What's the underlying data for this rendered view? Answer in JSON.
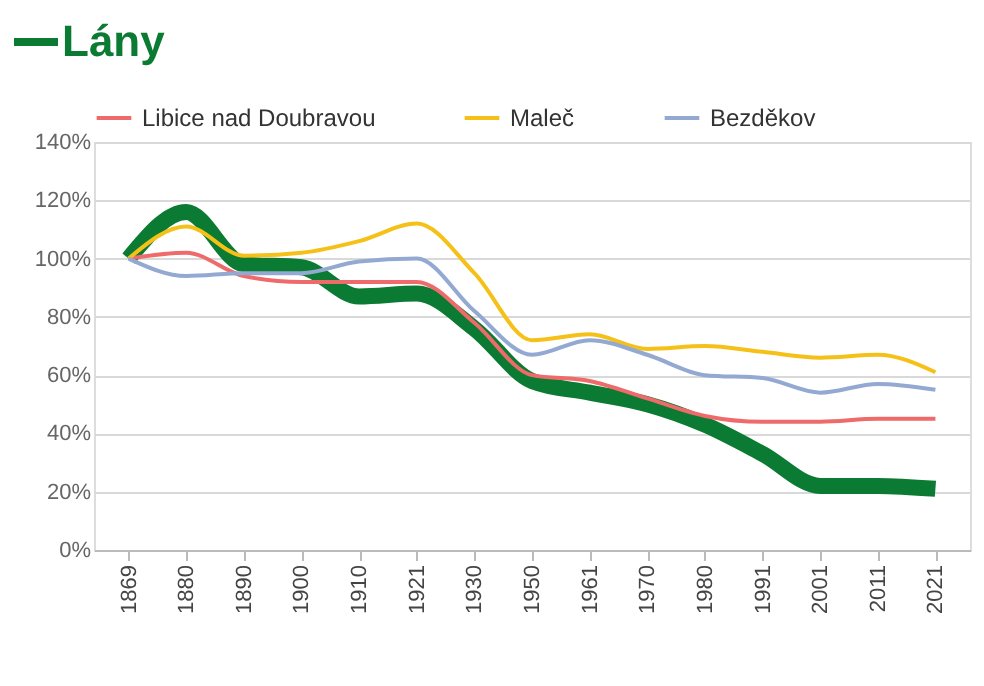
{
  "chart_data": {
    "type": "line",
    "categories": [
      "1869",
      "1880",
      "1890",
      "1900",
      "1910",
      "1921",
      "1930",
      "1950",
      "1961",
      "1970",
      "1980",
      "1991",
      "2001",
      "2011",
      "2021"
    ],
    "series": [
      {
        "name": "Lány",
        "color": "#0b7a32",
        "values": [
          100,
          116,
          98,
          97,
          87,
          88,
          76,
          58,
          54,
          50,
          43,
          33,
          22,
          22,
          21
        ]
      },
      {
        "name": "Libice nad Doubravou",
        "color": "#ef6b6b",
        "values": [
          100,
          102,
          94,
          92,
          92,
          92,
          78,
          60,
          58,
          52,
          46,
          44,
          44,
          45,
          45
        ]
      },
      {
        "name": "Maleč",
        "color": "#f5c118",
        "values": [
          100,
          111,
          101,
          102,
          106,
          112,
          95,
          72,
          74,
          69,
          70,
          68,
          66,
          67,
          61
        ]
      },
      {
        "name": "Bezděkov",
        "color": "#93a9d2",
        "values": [
          100,
          94,
          95,
          95,
          99,
          100,
          82,
          67,
          72,
          67,
          60,
          59,
          54,
          57,
          55
        ]
      }
    ],
    "ylim": [
      0,
      140
    ],
    "yticks": [
      {
        "value": 0,
        "label": "0%"
      },
      {
        "value": 20,
        "label": "20%"
      },
      {
        "value": 40,
        "label": "40%"
      },
      {
        "value": 60,
        "label": "60%"
      },
      {
        "value": 80,
        "label": "80%"
      },
      {
        "value": 100,
        "label": "100%"
      },
      {
        "value": 120,
        "label": "120%"
      },
      {
        "value": 140,
        "label": "140%"
      }
    ],
    "grid": "y",
    "legend": "top",
    "marker": "none",
    "line_style": "solid"
  }
}
